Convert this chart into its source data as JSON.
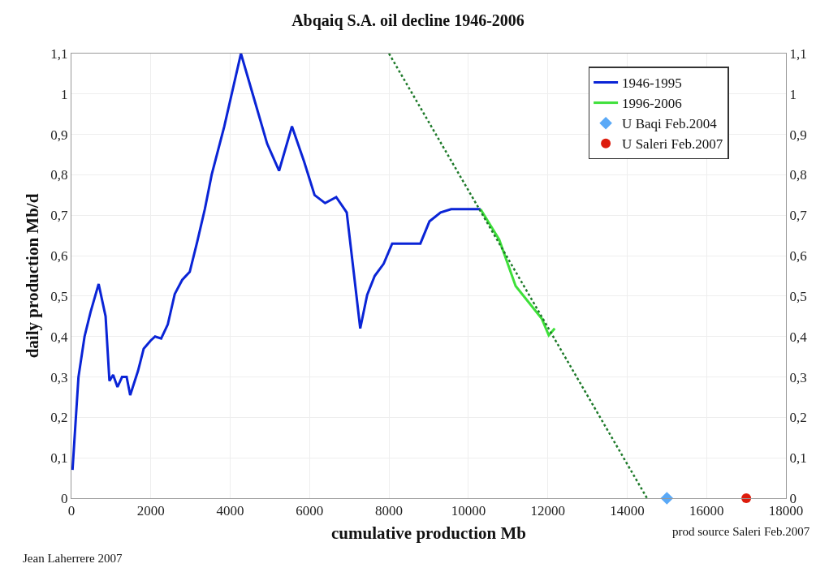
{
  "chart_data": {
    "type": "line",
    "title": "Abqaiq S.A. oil decline 1946-2006",
    "xlabel": "cumulative production Mb",
    "ylabel": "daily production Mb/d",
    "annotations": [
      "Jean Laherrere 2007",
      "prod source Saleri Feb.2007"
    ],
    "series": [
      {
        "name": "1946-1995",
        "color": "#0a24d6",
        "marker": "none",
        "line_style": "solid",
        "x": [
          27,
          177,
          330,
          480,
          685,
          860,
          957,
          1050,
          1160,
          1275,
          1390,
          1480,
          1677,
          1820,
          1995,
          2107,
          2260,
          2427,
          2602,
          2790,
          2980,
          3170,
          3360,
          3532,
          3851,
          4270,
          4610,
          4930,
          5230,
          5555,
          5860,
          6125,
          6390,
          6670,
          6935,
          7110,
          7275,
          7450,
          7640,
          7865,
          8080,
          8790,
          9020,
          9300,
          9565,
          10305
        ],
        "values": [
          0.07,
          0.3,
          0.4,
          0.46,
          0.53,
          0.45,
          0.29,
          0.305,
          0.275,
          0.3,
          0.3,
          0.255,
          0.315,
          0.37,
          0.39,
          0.4,
          0.395,
          0.43,
          0.505,
          0.54,
          0.56,
          0.635,
          0.715,
          0.8,
          0.92,
          1.1,
          0.985,
          0.877,
          0.81,
          0.92,
          0.833,
          0.75,
          0.73,
          0.745,
          0.707,
          0.56,
          0.42,
          0.503,
          0.55,
          0.58,
          0.63,
          0.63,
          0.685,
          0.707,
          0.715,
          0.715
        ]
      },
      {
        "name": "1996-2006",
        "color": "#3ee03a",
        "marker": "none",
        "line_style": "solid",
        "x": [
          10305,
          10775,
          11190,
          11850,
          12025,
          12175
        ],
        "values": [
          0.715,
          0.64,
          0.525,
          0.444,
          0.403,
          0.42
        ]
      },
      {
        "name": "U Baqi Feb.2004",
        "color": "#5aa9f7",
        "type": "scatter",
        "marker": "diamond",
        "x": [
          15000
        ],
        "values": [
          0
        ]
      },
      {
        "name": "U Saleri Feb.2007",
        "color": "#dd1c0c",
        "type": "scatter",
        "marker": "circle",
        "x": [
          17000
        ],
        "values": [
          0
        ]
      },
      {
        "color": "#1e7a2a",
        "type": "line",
        "marker": "none",
        "line_style": "dotted",
        "x": [
          8000,
          14500
        ],
        "values": [
          1.1,
          0
        ]
      }
    ],
    "xlim": [
      0,
      18000
    ],
    "xticks": [
      0,
      2000,
      4000,
      6000,
      8000,
      10000,
      12000,
      14000,
      16000,
      18000
    ],
    "ylim": [
      0,
      1.1
    ],
    "yticks": [
      {
        "value": 0,
        "label": "0"
      },
      {
        "value": 0.1,
        "label": "0,1"
      },
      {
        "value": 0.2,
        "label": "0,2"
      },
      {
        "value": 0.3,
        "label": "0,3"
      },
      {
        "value": 0.4,
        "label": "0,4"
      },
      {
        "value": 0.5,
        "label": "0,5"
      },
      {
        "value": 0.6,
        "label": "0,6"
      },
      {
        "value": 0.7,
        "label": "0,7"
      },
      {
        "value": 0.8,
        "label": "0,8"
      },
      {
        "value": 0.9,
        "label": "0,9"
      },
      {
        "value": 1,
        "label": "1"
      },
      {
        "value": 1.1,
        "label": "1,1"
      }
    ],
    "y2lim": [
      0,
      1.1
    ],
    "y2ticks": [
      {
        "value": 0,
        "label": "0"
      },
      {
        "value": 0.1,
        "label": "0,1"
      },
      {
        "value": 0.2,
        "label": "0,2"
      },
      {
        "value": 0.3,
        "label": "0,3"
      },
      {
        "value": 0.4,
        "label": "0,4"
      },
      {
        "value": 0.5,
        "label": "0,5"
      },
      {
        "value": 0.6,
        "label": "0,6"
      },
      {
        "value": 0.7,
        "label": "0,7"
      },
      {
        "value": 0.8,
        "label": "0,8"
      },
      {
        "value": 0.9,
        "label": "0,9"
      },
      {
        "value": 1,
        "label": "1"
      },
      {
        "value": 1.1,
        "label": "1,1"
      }
    ],
    "grid": true,
    "legend": "top right"
  }
}
